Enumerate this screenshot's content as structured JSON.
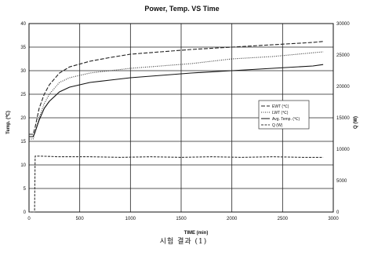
{
  "caption": "시험 결과 (1)",
  "chart_data": {
    "type": "line",
    "title": "Power, Temp. VS Time",
    "xlabel": "TIME (min)",
    "ylabel": "Temp. (℃)",
    "y2label": "Q (W)",
    "xlim": [
      0,
      3000
    ],
    "ylim": [
      0,
      40
    ],
    "y2lim": [
      0,
      30000
    ],
    "xticks": [
      0,
      500,
      1000,
      1500,
      2000,
      2500,
      3000
    ],
    "yticks": [
      0,
      5,
      10,
      15,
      20,
      25,
      30,
      35,
      40
    ],
    "y2ticks": [
      0,
      5000,
      10000,
      15000,
      20000,
      25000,
      30000
    ],
    "grid": true,
    "legend_position": "right-middle",
    "series": [
      {
        "name": "EWT (℃)",
        "axis": "left",
        "color": "#222222",
        "dash": "5,2",
        "x": [
          0,
          40,
          60,
          100,
          150,
          200,
          300,
          400,
          600,
          800,
          1000,
          1300,
          1600,
          2000,
          2400,
          2800,
          2900
        ],
        "y": [
          16.5,
          16.5,
          18,
          22,
          25,
          27,
          29.5,
          30.8,
          32,
          32.8,
          33.5,
          34,
          34.5,
          35,
          35.5,
          36,
          36.2
        ]
      },
      {
        "name": "LWT (℃)",
        "axis": "left",
        "color": "#333333",
        "dash": "1,1.5",
        "x": [
          0,
          40,
          60,
          100,
          150,
          200,
          300,
          400,
          600,
          800,
          1000,
          1300,
          1600,
          2000,
          2400,
          2800,
          2900
        ],
        "y": [
          15.5,
          15.5,
          17,
          20,
          23,
          25,
          27.5,
          28.5,
          29.5,
          30,
          30.5,
          31,
          31.5,
          32.5,
          33,
          33.8,
          34
        ]
      },
      {
        "name": "Avg. Temp. (℃)",
        "axis": "left",
        "color": "#111111",
        "dash": "",
        "x": [
          0,
          40,
          60,
          100,
          150,
          200,
          300,
          400,
          600,
          800,
          1000,
          1300,
          1600,
          2000,
          2400,
          2800,
          2900
        ],
        "y": [
          16,
          16,
          17,
          19.5,
          22,
          23.5,
          25.5,
          26.5,
          27.5,
          28,
          28.5,
          29,
          29.5,
          30,
          30.5,
          31,
          31.3
        ]
      },
      {
        "name": "Q (W)",
        "axis": "right",
        "color": "#333333",
        "dash": "3,1.5",
        "x": [
          0,
          40,
          55,
          60,
          100,
          300,
          600,
          900,
          1200,
          1500,
          1800,
          2100,
          2400,
          2700,
          2900
        ],
        "y": [
          0,
          0,
          0,
          8900,
          8900,
          8800,
          8800,
          8700,
          8800,
          8700,
          8800,
          8700,
          8800,
          8700,
          8700
        ]
      }
    ]
  }
}
